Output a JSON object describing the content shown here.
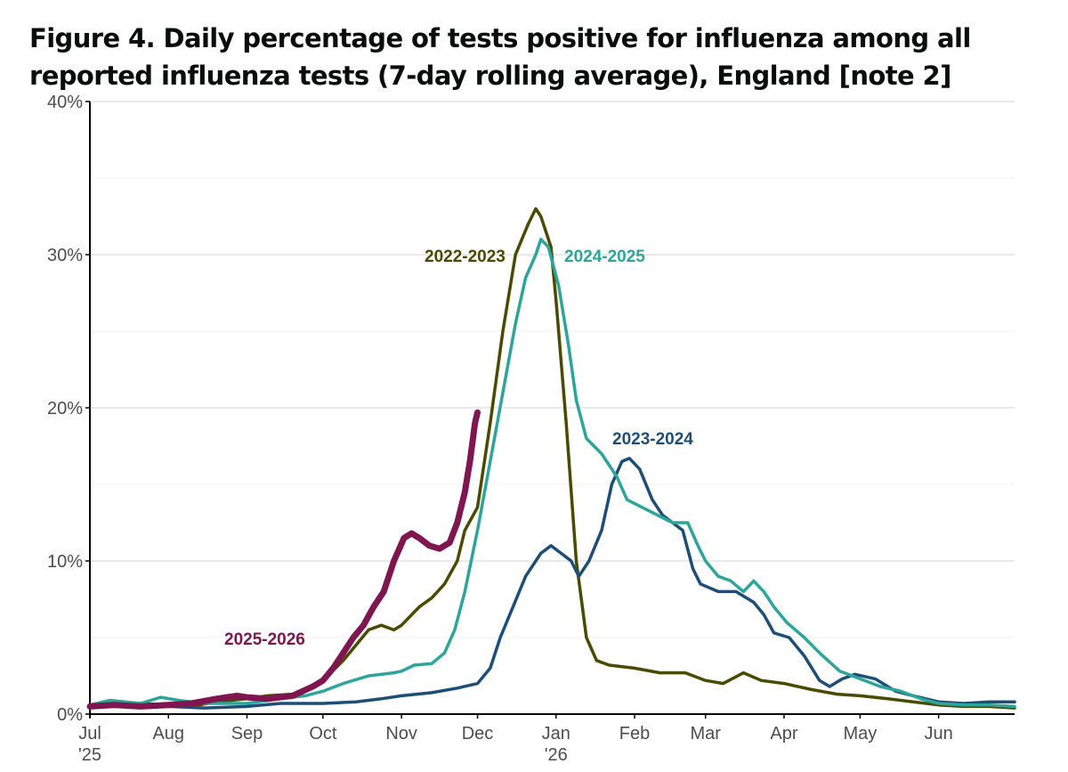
{
  "chart_data": {
    "type": "line",
    "title": "Figure 4. Daily percentage of tests positive for influenza among all reported influenza tests (7-day rolling average), England [note 2]",
    "xlabel": "",
    "ylabel": "",
    "ylim": [
      0,
      40
    ],
    "yticks": [
      "0%",
      "10%",
      "20%",
      "30%",
      "40%"
    ],
    "xlim": [
      0,
      365
    ],
    "xticks": [
      {
        "day": 0,
        "label": "Jul",
        "sublabel": "'25"
      },
      {
        "day": 31,
        "label": "Aug",
        "sublabel": ""
      },
      {
        "day": 62,
        "label": "Sep",
        "sublabel": ""
      },
      {
        "day": 92,
        "label": "Oct",
        "sublabel": ""
      },
      {
        "day": 123,
        "label": "Nov",
        "sublabel": ""
      },
      {
        "day": 153,
        "label": "Dec",
        "sublabel": ""
      },
      {
        "day": 184,
        "label": "Jan",
        "sublabel": "'26"
      },
      {
        "day": 215,
        "label": "Feb",
        "sublabel": ""
      },
      {
        "day": 243,
        "label": "Mar",
        "sublabel": ""
      },
      {
        "day": 274,
        "label": "Apr",
        "sublabel": ""
      },
      {
        "day": 304,
        "label": "May",
        "sublabel": ""
      },
      {
        "day": 335,
        "label": "Jun",
        "sublabel": ""
      }
    ],
    "grid": true,
    "series": [
      {
        "name": "2022-2023",
        "color": "#4a4a00",
        "points": [
          [
            0,
            0.6
          ],
          [
            10,
            0.8
          ],
          [
            20,
            0.7
          ],
          [
            31,
            0.6
          ],
          [
            40,
            0.5
          ],
          [
            50,
            0.8
          ],
          [
            62,
            1.0
          ],
          [
            70,
            1.2
          ],
          [
            80,
            1.3
          ],
          [
            92,
            2.2
          ],
          [
            100,
            3.5
          ],
          [
            105,
            4.5
          ],
          [
            110,
            5.5
          ],
          [
            115,
            5.8
          ],
          [
            120,
            5.5
          ],
          [
            123,
            5.8
          ],
          [
            130,
            7.0
          ],
          [
            135,
            7.6
          ],
          [
            140,
            8.5
          ],
          [
            145,
            10.0
          ],
          [
            148,
            12.0
          ],
          [
            153,
            13.5
          ],
          [
            158,
            19.0
          ],
          [
            163,
            25.0
          ],
          [
            168,
            30.0
          ],
          [
            173,
            32.0
          ],
          [
            176,
            33.0
          ],
          [
            178,
            32.5
          ],
          [
            182,
            30.5
          ],
          [
            184,
            27.0
          ],
          [
            188,
            19.0
          ],
          [
            192,
            10.0
          ],
          [
            196,
            5.0
          ],
          [
            200,
            3.5
          ],
          [
            205,
            3.2
          ],
          [
            215,
            3.0
          ],
          [
            225,
            2.7
          ],
          [
            235,
            2.7
          ],
          [
            243,
            2.2
          ],
          [
            250,
            2.0
          ],
          [
            258,
            2.7
          ],
          [
            265,
            2.2
          ],
          [
            274,
            2.0
          ],
          [
            285,
            1.6
          ],
          [
            295,
            1.3
          ],
          [
            304,
            1.2
          ],
          [
            315,
            1.0
          ],
          [
            325,
            0.8
          ],
          [
            335,
            0.6
          ],
          [
            345,
            0.5
          ],
          [
            355,
            0.5
          ],
          [
            365,
            0.4
          ]
        ]
      },
      {
        "name": "2023-2024",
        "color": "#1d4e78",
        "points": [
          [
            0,
            0.6
          ],
          [
            15,
            0.5
          ],
          [
            31,
            0.5
          ],
          [
            45,
            0.4
          ],
          [
            62,
            0.5
          ],
          [
            75,
            0.7
          ],
          [
            92,
            0.7
          ],
          [
            105,
            0.8
          ],
          [
            115,
            1.0
          ],
          [
            123,
            1.2
          ],
          [
            135,
            1.4
          ],
          [
            145,
            1.7
          ],
          [
            153,
            2.0
          ],
          [
            158,
            3.0
          ],
          [
            162,
            5.0
          ],
          [
            167,
            7.0
          ],
          [
            172,
            9.0
          ],
          [
            178,
            10.5
          ],
          [
            182,
            11.0
          ],
          [
            186,
            10.5
          ],
          [
            190,
            10.0
          ],
          [
            193,
            9.0
          ],
          [
            197,
            10.0
          ],
          [
            202,
            12.0
          ],
          [
            206,
            15.0
          ],
          [
            210,
            16.5
          ],
          [
            213,
            16.7
          ],
          [
            217,
            16.0
          ],
          [
            222,
            14.0
          ],
          [
            226,
            13.0
          ],
          [
            230,
            12.5
          ],
          [
            234,
            12.0
          ],
          [
            238,
            9.5
          ],
          [
            241,
            8.5
          ],
          [
            248,
            8.0
          ],
          [
            255,
            8.0
          ],
          [
            262,
            7.3
          ],
          [
            266,
            6.5
          ],
          [
            270,
            5.3
          ],
          [
            276,
            5.0
          ],
          [
            282,
            3.8
          ],
          [
            288,
            2.2
          ],
          [
            292,
            1.8
          ],
          [
            297,
            2.3
          ],
          [
            302,
            2.6
          ],
          [
            310,
            2.3
          ],
          [
            318,
            1.5
          ],
          [
            325,
            1.2
          ],
          [
            335,
            0.8
          ],
          [
            345,
            0.7
          ],
          [
            355,
            0.8
          ],
          [
            365,
            0.8
          ]
        ]
      },
      {
        "name": "2024-2025",
        "color": "#2ca59a",
        "points": [
          [
            0,
            0.6
          ],
          [
            8,
            0.9
          ],
          [
            20,
            0.7
          ],
          [
            28,
            1.1
          ],
          [
            35,
            0.9
          ],
          [
            45,
            0.7
          ],
          [
            62,
            0.7
          ],
          [
            75,
            1.0
          ],
          [
            85,
            1.2
          ],
          [
            92,
            1.5
          ],
          [
            100,
            2.0
          ],
          [
            110,
            2.5
          ],
          [
            120,
            2.7
          ],
          [
            123,
            2.8
          ],
          [
            128,
            3.2
          ],
          [
            135,
            3.3
          ],
          [
            140,
            4.0
          ],
          [
            144,
            5.5
          ],
          [
            148,
            8.0
          ],
          [
            153,
            12.0
          ],
          [
            158,
            16.5
          ],
          [
            163,
            21.0
          ],
          [
            168,
            25.5
          ],
          [
            172,
            28.5
          ],
          [
            176,
            30.0
          ],
          [
            178,
            31.0
          ],
          [
            181,
            30.5
          ],
          [
            185,
            28.0
          ],
          [
            189,
            24.0
          ],
          [
            192,
            20.5
          ],
          [
            196,
            18.0
          ],
          [
            202,
            17.0
          ],
          [
            208,
            15.5
          ],
          [
            212,
            14.0
          ],
          [
            218,
            13.5
          ],
          [
            224,
            13.0
          ],
          [
            230,
            12.5
          ],
          [
            236,
            12.5
          ],
          [
            240,
            11.0
          ],
          [
            243,
            10.0
          ],
          [
            248,
            9.0
          ],
          [
            253,
            8.7
          ],
          [
            258,
            8.0
          ],
          [
            262,
            8.7
          ],
          [
            266,
            8.0
          ],
          [
            270,
            7.0
          ],
          [
            275,
            6.0
          ],
          [
            282,
            5.0
          ],
          [
            288,
            4.0
          ],
          [
            296,
            2.8
          ],
          [
            304,
            2.3
          ],
          [
            312,
            1.8
          ],
          [
            320,
            1.5
          ],
          [
            328,
            1.0
          ],
          [
            335,
            0.7
          ],
          [
            345,
            0.6
          ],
          [
            355,
            0.6
          ],
          [
            365,
            0.5
          ]
        ]
      },
      {
        "name": "2025-2026",
        "color": "#801650",
        "points": [
          [
            0,
            0.5
          ],
          [
            10,
            0.6
          ],
          [
            20,
            0.5
          ],
          [
            31,
            0.6
          ],
          [
            40,
            0.7
          ],
          [
            50,
            1.0
          ],
          [
            58,
            1.2
          ],
          [
            62,
            1.1
          ],
          [
            70,
            1.0
          ],
          [
            80,
            1.2
          ],
          [
            88,
            1.8
          ],
          [
            92,
            2.2
          ],
          [
            96,
            3.0
          ],
          [
            100,
            4.0
          ],
          [
            104,
            5.0
          ],
          [
            108,
            5.8
          ],
          [
            112,
            7.0
          ],
          [
            116,
            8.0
          ],
          [
            120,
            10.0
          ],
          [
            124,
            11.5
          ],
          [
            127,
            11.8
          ],
          [
            130,
            11.5
          ],
          [
            134,
            11.0
          ],
          [
            138,
            10.8
          ],
          [
            142,
            11.2
          ],
          [
            145,
            12.5
          ],
          [
            148,
            14.5
          ],
          [
            150,
            16.5
          ],
          [
            152,
            19.0
          ],
          [
            153,
            19.7
          ]
        ]
      }
    ]
  },
  "series_labels": [
    {
      "text": "2022-2023",
      "color": "#4a4a00"
    },
    {
      "text": "2024-2025",
      "color": "#2ca59a"
    },
    {
      "text": "2023-2024",
      "color": "#1d4e78"
    },
    {
      "text": "2025-2026",
      "color": "#801650"
    }
  ]
}
